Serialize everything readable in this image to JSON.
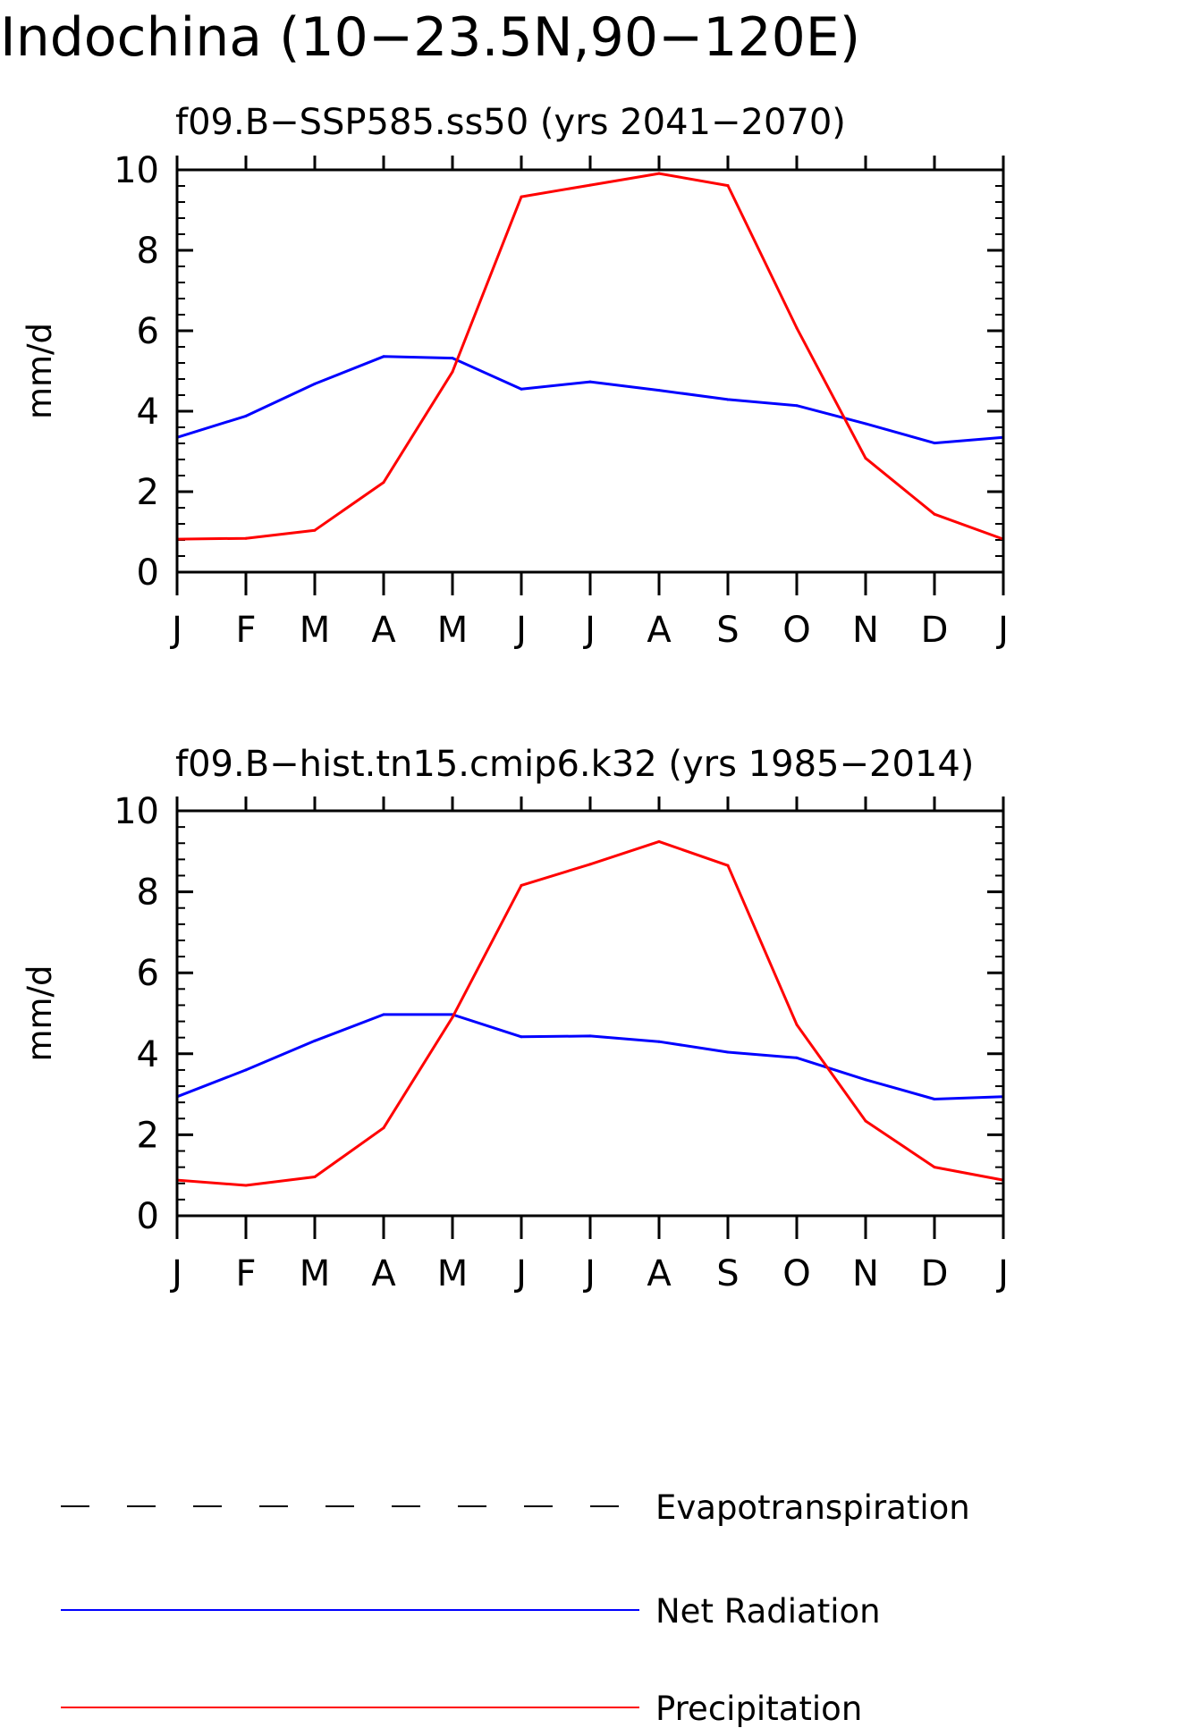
{
  "figure": {
    "title": "Indochina (10−23.5N,90−120E)"
  },
  "chart_data": [
    {
      "type": "line",
      "title": "f09.B−SSP585.ss50 (yrs 2041−2070)",
      "xlabel": "",
      "ylabel": "mm/d",
      "ylim": [
        0,
        10
      ],
      "yticks": [
        "0",
        "2",
        "4",
        "6",
        "8",
        "10"
      ],
      "categories": [
        "J",
        "F",
        "M",
        "A",
        "M",
        "J",
        "J",
        "A",
        "S",
        "O",
        "N",
        "D",
        "J"
      ],
      "grid": false,
      "series": [
        {
          "name": "Net Radiation",
          "color": "#0000ff",
          "values": [
            3.35,
            3.88,
            4.68,
            5.36,
            5.32,
            4.55,
            4.73,
            4.52,
            4.29,
            4.14,
            3.69,
            3.21,
            3.35
          ]
        },
        {
          "name": "Precipitation",
          "color": "#ff0000",
          "values": [
            0.82,
            0.84,
            1.04,
            2.23,
            4.98,
            9.33,
            9.62,
            9.91,
            9.61,
            6.07,
            2.83,
            1.44,
            0.82
          ]
        }
      ]
    },
    {
      "type": "line",
      "title": "f09.B−hist.tn15.cmip6.k32 (yrs 1985−2014)",
      "xlabel": "",
      "ylabel": "mm/d",
      "ylim": [
        0,
        10
      ],
      "yticks": [
        "0",
        "2",
        "4",
        "6",
        "8",
        "10"
      ],
      "categories": [
        "J",
        "F",
        "M",
        "A",
        "M",
        "J",
        "J",
        "A",
        "S",
        "O",
        "N",
        "D",
        "J"
      ],
      "grid": false,
      "series": [
        {
          "name": "Net Radiation",
          "color": "#0000ff",
          "values": [
            2.94,
            3.6,
            4.32,
            4.97,
            4.97,
            4.42,
            4.44,
            4.3,
            4.04,
            3.9,
            3.36,
            2.88,
            2.94
          ]
        },
        {
          "name": "Precipitation",
          "color": "#ff0000",
          "values": [
            0.88,
            0.75,
            0.96,
            2.17,
            4.9,
            8.16,
            8.68,
            9.24,
            8.65,
            4.72,
            2.34,
            1.2,
            0.88
          ]
        }
      ]
    }
  ],
  "legend": {
    "placement": "bottom",
    "items": [
      {
        "label": "Evapotranspiration",
        "color": "#000000",
        "dash": true
      },
      {
        "label": "Net Radiation",
        "color": "#0000ff",
        "dash": false
      },
      {
        "label": "Precipitation",
        "color": "#ff0000",
        "dash": false
      }
    ]
  }
}
